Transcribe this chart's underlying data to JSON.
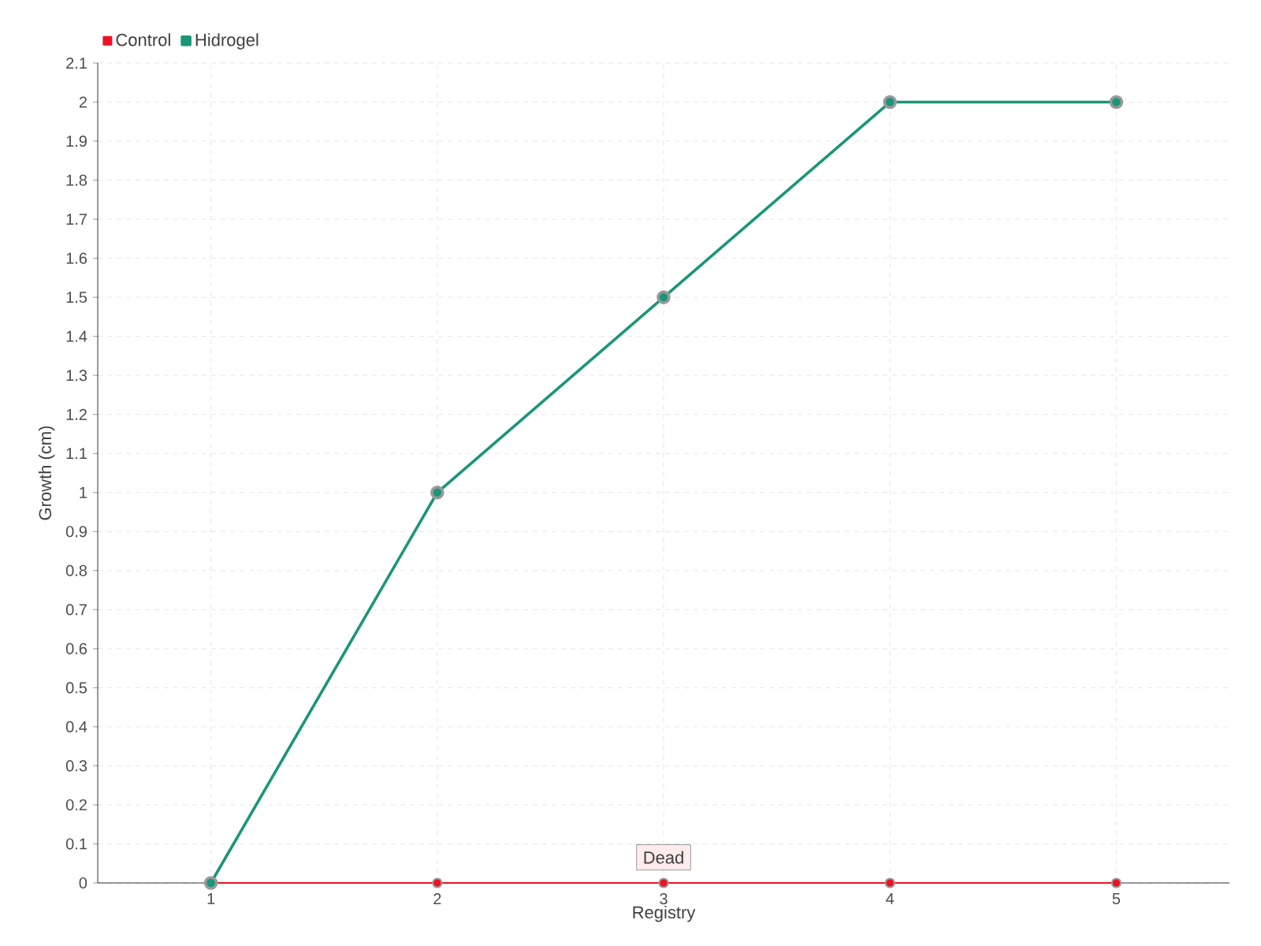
{
  "chart_data": {
    "type": "line",
    "xlabel": "Registry",
    "ylabel": "Growth (cm)",
    "x": [
      1,
      2,
      3,
      4,
      5
    ],
    "series": [
      {
        "name": "Hidrogel",
        "color": "#1a9678",
        "values": [
          0,
          1,
          1.5,
          2,
          2
        ]
      },
      {
        "name": "Control",
        "color": "#ee1122",
        "values": [
          0,
          0,
          0,
          0,
          0
        ]
      }
    ],
    "xlim": [
      0.5,
      5.5
    ],
    "xticks": [
      1,
      2,
      3,
      4,
      5
    ],
    "ylim": [
      0,
      2.1
    ],
    "yticks": [
      0,
      0.1,
      0.2,
      0.3,
      0.4,
      0.5,
      0.6,
      0.7,
      0.8,
      0.9,
      1,
      1.1,
      1.2,
      1.3,
      1.4,
      1.5,
      1.6,
      1.7,
      1.8,
      1.9,
      2,
      2.1
    ],
    "grid": true,
    "legend": "top left",
    "marker": "circle",
    "line_style": "solid",
    "annotations": [
      {
        "text": "Dead",
        "x": 3,
        "y": 0
      }
    ]
  }
}
